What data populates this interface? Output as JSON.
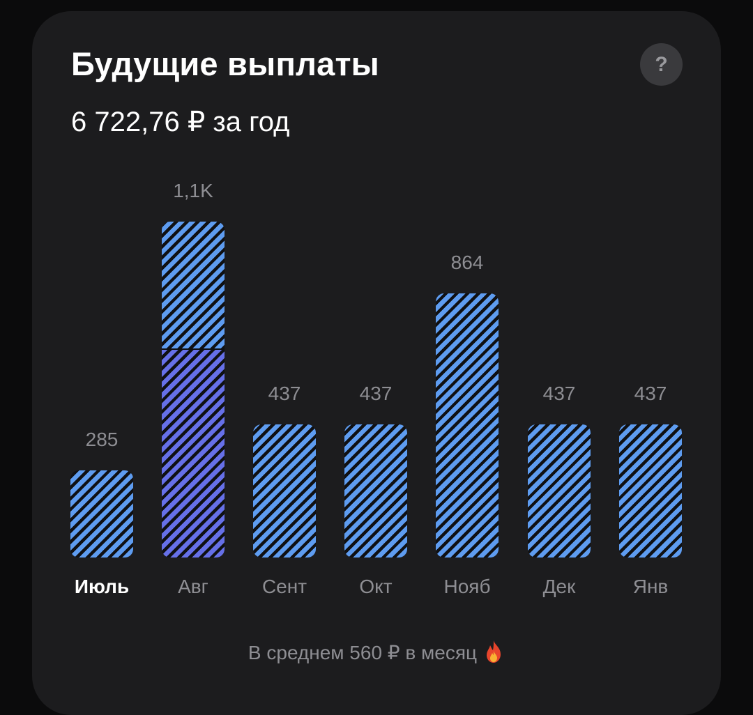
{
  "header": {
    "title": "Будущие выплаты",
    "subtitle": "6 722,76 ₽ за год",
    "help_label": "?"
  },
  "chart_data": {
    "type": "bar",
    "categories": [
      "Июль",
      "Авг",
      "Сент",
      "Окт",
      "Нояб",
      "Дек",
      "Янв"
    ],
    "value_labels": [
      "285",
      "1,1K",
      "437",
      "437",
      "864",
      "437",
      "437"
    ],
    "values": [
      285,
      1100,
      437,
      437,
      864,
      437,
      437
    ],
    "stacked_lower_segment": {
      "category": "Авг",
      "value": 682
    },
    "active_category": "Июль",
    "colors": {
      "primary": "#5e9cf0",
      "secondary": "#6670e8"
    },
    "grid": false
  },
  "footer": {
    "text": "В среднем 560 ₽ в месяц",
    "icon": "fire-icon"
  }
}
